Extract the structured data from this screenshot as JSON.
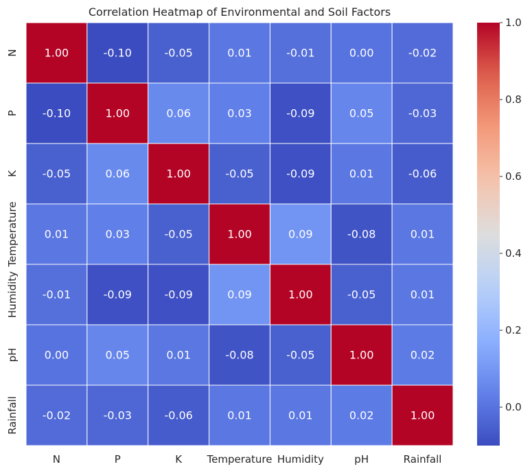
{
  "chart_data": {
    "type": "heatmap",
    "title": "Correlation Heatmap of Environmental and Soil Factors",
    "x_labels": [
      "N",
      "P",
      "K",
      "Temperature",
      "Humidity",
      "pH",
      "Rainfall"
    ],
    "y_labels": [
      "N",
      "P",
      "K",
      "Temperature",
      "Humidity",
      "pH",
      "Rainfall"
    ],
    "values": [
      [
        1.0,
        -0.1,
        -0.05,
        0.01,
        -0.01,
        0.0,
        -0.02
      ],
      [
        -0.1,
        1.0,
        0.06,
        0.03,
        -0.09,
        0.05,
        -0.03
      ],
      [
        -0.05,
        0.06,
        1.0,
        -0.05,
        -0.09,
        0.01,
        -0.06
      ],
      [
        0.01,
        0.03,
        -0.05,
        1.0,
        0.09,
        -0.08,
        0.01
      ],
      [
        -0.01,
        -0.09,
        -0.09,
        0.09,
        1.0,
        -0.05,
        0.01
      ],
      [
        0.0,
        0.05,
        0.01,
        -0.08,
        -0.05,
        1.0,
        0.02
      ],
      [
        -0.02,
        -0.03,
        -0.06,
        0.01,
        0.01,
        0.02,
        1.0
      ]
    ],
    "value_format": "2 decimals",
    "colormap": "coolwarm",
    "vmin": -0.1,
    "vmax": 1.0,
    "colorbar": {
      "ticks": [
        0.0,
        0.2,
        0.4,
        0.6,
        0.8,
        1.0
      ],
      "tick_labels": [
        "0.0",
        "0.2",
        "0.4",
        "0.6",
        "0.8",
        "1.0"
      ]
    },
    "cell_border_color": "#ffffff"
  }
}
